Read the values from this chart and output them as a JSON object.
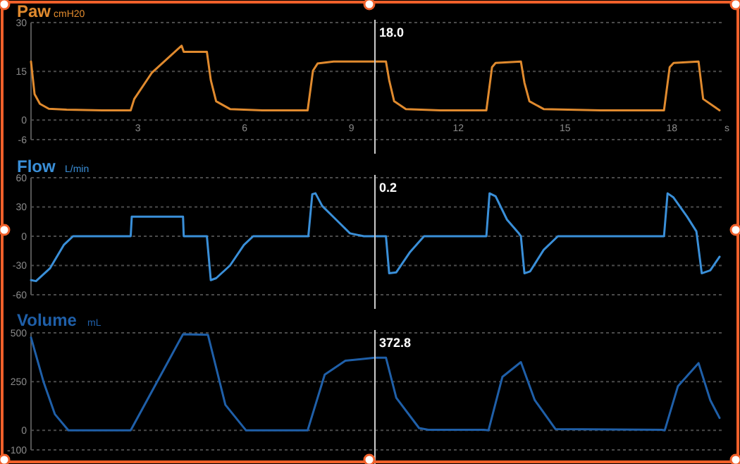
{
  "chart_data": [
    {
      "type": "line",
      "title": "Paw",
      "subtitle": "cmH20",
      "xlabel": "s",
      "xlim": [
        0,
        19.4
      ],
      "xticks": [
        3,
        6,
        9,
        12,
        15,
        18
      ],
      "ylim": [
        -6,
        30
      ],
      "yticks": [
        -6,
        0,
        15,
        30
      ],
      "grid": "y",
      "marker": "none",
      "line_style": "solid",
      "annotations": [
        "18.0"
      ],
      "ref_lines": [
        {
          "axis": "x",
          "value": 9.66,
          "color": "#cccccc"
        }
      ],
      "series": [
        {
          "color": "#e08a2e",
          "x": [
            0,
            0.1,
            0.25,
            0.5,
            1,
            2,
            2.8,
            2.9,
            3.39,
            4.23,
            4.29,
            4.94,
            5.05,
            5.2,
            5.59,
            6.5,
            7.77,
            7.92,
            8.05,
            8.5,
            9.97,
            10.06,
            10.2,
            10.53,
            11.5,
            12.79,
            12.95,
            13.05,
            13.76,
            13.86,
            14.0,
            14.4,
            16,
            17.78,
            17.94,
            18.05,
            18.75,
            18.88,
            19.34
          ],
          "values": [
            18,
            8,
            5,
            3.5,
            3.2,
            3,
            3,
            6.5,
            14.5,
            22.9,
            21,
            21,
            12.3,
            5.8,
            3.4,
            3,
            3,
            15.2,
            17.4,
            18,
            18,
            12.3,
            5.8,
            3.4,
            3,
            3,
            16.3,
            17.6,
            18,
            11.5,
            5.8,
            3.4,
            3,
            3,
            16.3,
            17.6,
            18,
            6.5,
            3
          ]
        }
      ]
    },
    {
      "type": "line",
      "title": "Flow",
      "subtitle": "L/min",
      "xlim": [
        0,
        19.4
      ],
      "ylim": [
        -60,
        60
      ],
      "yticks": [
        -60,
        -30,
        0,
        30,
        60
      ],
      "grid": "y",
      "marker": "none",
      "line_style": "solid",
      "tick_labels": "y",
      "annotations": [
        "0.2"
      ],
      "ref_lines": [
        {
          "axis": "x",
          "value": 9.66,
          "color": "#cccccc"
        }
      ],
      "series": [
        {
          "color": "#3a8fd8",
          "x": [
            0,
            0.14,
            0.53,
            0.92,
            1.18,
            2.8,
            2.83,
            4.27,
            4.29,
            4.94,
            5.05,
            5.2,
            5.59,
            5.98,
            6.24,
            7.79,
            7.9,
            7.99,
            8.18,
            8.57,
            8.96,
            9.35,
            9.97,
            10.06,
            10.26,
            10.65,
            11.04,
            12.79,
            12.88,
            13.05,
            13.37,
            13.7,
            13.76,
            13.86,
            14.02,
            14.4,
            14.8,
            17.78,
            17.88,
            18.04,
            18.43,
            18.69,
            18.84,
            19.08,
            19.34
          ],
          "values": [
            -45,
            -46,
            -33,
            -9,
            0,
            0,
            20,
            20,
            0,
            0,
            -45,
            -43,
            -30,
            -9,
            0,
            0,
            43,
            44,
            31,
            17,
            3,
            0,
            0,
            -38,
            -37,
            -16,
            0,
            0,
            44,
            41,
            17,
            3,
            0,
            -38,
            -36,
            -14,
            0,
            0,
            44,
            40,
            20,
            5,
            -38,
            -35,
            -21
          ]
        }
      ]
    },
    {
      "type": "line",
      "title": "Volume",
      "subtitle": "mL",
      "xlim": [
        0,
        19.4
      ],
      "ylim": [
        -100,
        500
      ],
      "yticks": [
        -100,
        0,
        250,
        500
      ],
      "grid": "y",
      "marker": "none",
      "line_style": "solid",
      "tick_labels": "y",
      "annotations": [
        "372.8"
      ],
      "ref_lines": [
        {
          "axis": "x",
          "value": 9.66,
          "color": "#cccccc"
        }
      ],
      "series": [
        {
          "color": "#1f5fa8",
          "x": [
            0,
            0.35,
            0.67,
            1.05,
            2.8,
            4.27,
            4.97,
            5.46,
            6.04,
            7.77,
            8.25,
            8.83,
            9.66,
            9.97,
            10.26,
            10.9,
            11.16,
            12.72,
            12.85,
            13.24,
            13.76,
            14.15,
            14.73,
            17.71,
            17.8,
            18.17,
            18.75,
            19.08,
            19.34
          ],
          "values": [
            476,
            250,
            83,
            0,
            0,
            493,
            490,
            131,
            0,
            0,
            286,
            357,
            373,
            373,
            167,
            12,
            3,
            3,
            0,
            274,
            350,
            155,
            7,
            3,
            0,
            226,
            345,
            155,
            64
          ]
        }
      ]
    }
  ]
}
